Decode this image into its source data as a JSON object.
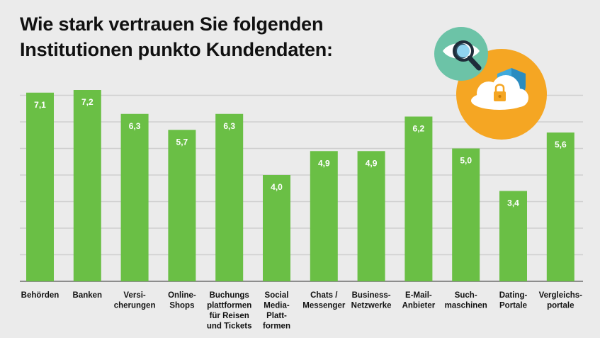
{
  "title_line1": "Wie stark vertrauen Sie folgenden",
  "title_line2": "Institutionen punkto Kundendaten:",
  "colors": {
    "bar": "#6abf45",
    "background": "#ebebeb",
    "grid": "#cfcfcf",
    "icon_teal": "#6cc3a7",
    "icon_orange": "#f5a623",
    "icon_shield": "#3fa9dc"
  },
  "icons": [
    "eye-magnifier-icon",
    "cloud-shield-lock-icon"
  ],
  "chart_data": {
    "type": "bar",
    "title": "Wie stark vertrauen Sie folgenden Institutionen punkto Kundendaten:",
    "categories": [
      [
        "Behörden"
      ],
      [
        "Banken"
      ],
      [
        "Versi-",
        "cherungen"
      ],
      [
        "Online-",
        "Shops"
      ],
      [
        "Buchungs",
        "plattformen",
        "für Reisen",
        "und Tickets"
      ],
      [
        "Social",
        "Media-",
        "Platt-",
        "formen"
      ],
      [
        "Chats /",
        "Messenger"
      ],
      [
        "Business-",
        "Netzwerke"
      ],
      [
        "E-Mail-",
        "Anbieter"
      ],
      [
        "Such-",
        "maschinen"
      ],
      [
        "Dating-",
        "Portale"
      ],
      [
        "Vergleichs-",
        "portale"
      ]
    ],
    "values": [
      7.1,
      7.2,
      6.3,
      5.7,
      6.3,
      4.0,
      4.9,
      4.9,
      6.2,
      5.0,
      3.4,
      5.6
    ],
    "value_labels": [
      "7,1",
      "7,2",
      "6,3",
      "5,7",
      "6,3",
      "4,0",
      "4,9",
      "4,9",
      "6,2",
      "5,0",
      "3,4",
      "5,6"
    ],
    "ylim": [
      0,
      7.5
    ],
    "grid": true,
    "grid_step": 1
  }
}
